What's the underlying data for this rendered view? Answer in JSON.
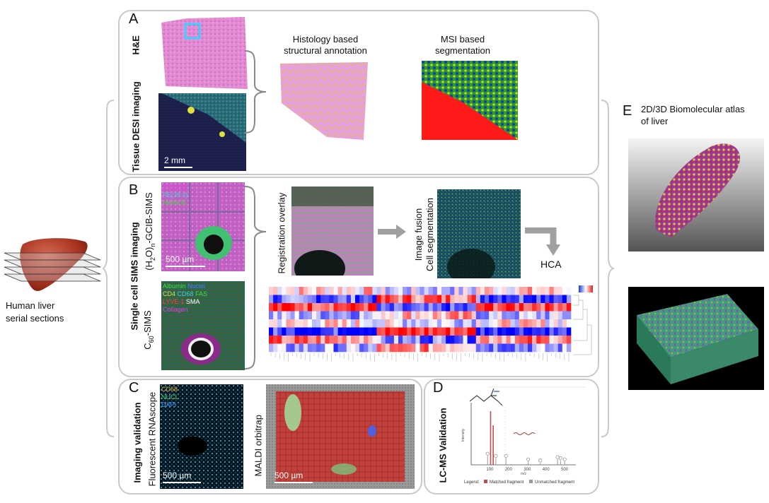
{
  "figure": {
    "left": {
      "caption": [
        "Human liver",
        "serial sections"
      ]
    },
    "panelA": {
      "letter": "A",
      "he_label": "H&E",
      "desi_label": "Tissue DESI imaging",
      "scalebar": "2 mm",
      "histology_caption": [
        "Histology based",
        "structural annotation"
      ],
      "msi_caption": [
        "MSI based",
        "segmentation"
      ]
    },
    "panelB": {
      "letter": "B",
      "side_label": "Single cell SIMS imaging",
      "gcib_label_prefix": "(H",
      "gcib_sub1": "2",
      "gcib_mid": "O)",
      "gcib_sub2": "n",
      "gcib_suffix": "-GCIB-SIMS",
      "gcib_legend": [
        {
          "text": "PI (38:4)",
          "color": "#e040e0"
        },
        {
          "text": "PE(38:4)",
          "color": "#40d0e0"
        },
        {
          "text": "Heme B",
          "color": "#40e040"
        }
      ],
      "gcib_scalebar": "500 µm",
      "c60_prefix": "C",
      "c60_sub": "60",
      "c60_suffix": "-SIMS",
      "c60_legend": [
        [
          {
            "text": "Albumin",
            "color": "#40e040"
          },
          {
            "text": "Nuclei",
            "color": "#4080ff"
          }
        ],
        [
          {
            "text": "CD4",
            "color": "#e0e040"
          },
          {
            "text": "CD68",
            "color": "#40d0e0"
          },
          {
            "text": "FAS",
            "color": "#40e040"
          }
        ],
        [
          {
            "text": "LYVE-1",
            "color": "#ff4040"
          },
          {
            "text": "SMA",
            "color": "#ffffff"
          }
        ],
        [
          {
            "text": "Collagen",
            "color": "#e040e0"
          }
        ]
      ],
      "registration_label": "Registration overlay",
      "fusion_label": [
        "Image fusion",
        "Cell segmentation"
      ],
      "hca_label": "HCA"
    },
    "panelC": {
      "letter": "C",
      "side_label": "Imaging validation",
      "rnascope_label": "Fluorescent RNAscope",
      "rnascope_legend": [
        {
          "text": "CD68",
          "color": "#e0b040"
        },
        {
          "text": "NUCL",
          "color": "#40d080"
        },
        {
          "text": "DAPI",
          "color": "#40a0ff"
        }
      ],
      "rnascope_scalebar": "500 µm",
      "maldi_label": "MALDI orbitrap",
      "maldi_scalebar": "500 µm"
    },
    "panelD": {
      "letter": "D",
      "side_label": "LC-MS Validation",
      "ylabel": "Intensity",
      "xlabel": "m/z",
      "legend_title": "Legend:",
      "legend_matched": "Matched fragment",
      "legend_unmatched": "Unmatched fragment",
      "matched_color": "#c0504d",
      "unmatched_color": "#999999"
    },
    "panelE": {
      "letter": "E",
      "caption": [
        "2D/3D Biomolecular atlas",
        "of liver"
      ]
    }
  },
  "chart_data": {
    "type": "bar",
    "xlim": [
      0,
      560
    ],
    "xticks": [
      100,
      200,
      300,
      400,
      500
    ],
    "series": [
      {
        "name": "Matched fragment",
        "x": [
          104,
          118
        ],
        "values": [
          0.95,
          0.7
        ]
      },
      {
        "name": "Unmatched fragment",
        "x": [
          88,
          132,
          186,
          305,
          370,
          462,
          478,
          500
        ],
        "values": [
          0.16,
          0.12,
          0.12,
          0.06,
          0.04,
          0.1,
          0.08,
          0.06
        ]
      }
    ]
  }
}
